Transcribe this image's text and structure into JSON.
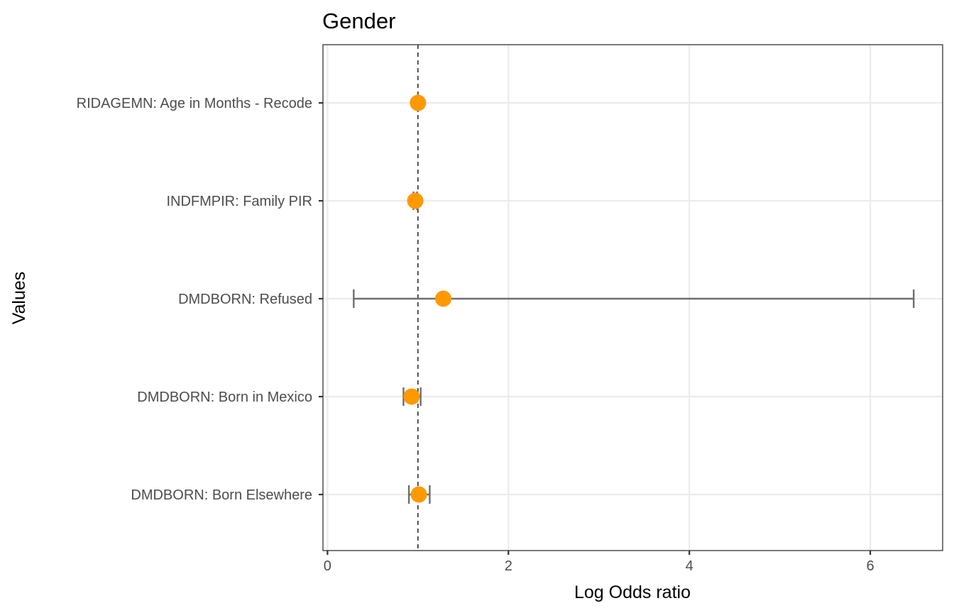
{
  "chart_data": {
    "type": "scatter",
    "title": "Gender",
    "xlabel": "Log Odds ratio",
    "ylabel": "Values",
    "xlim": [
      -0.05,
      6.8
    ],
    "xticks": [
      0,
      2,
      4,
      6
    ],
    "reference_line_x": 1,
    "grid": true,
    "point_color": "#FF9900",
    "errorbar_color": "#6E6E6E",
    "categories": [
      "DMDBORN: Born Elsewhere",
      "DMDBORN: Born in Mexico",
      "DMDBORN: Refused",
      "INDFMPIR: Family PIR",
      "RIDAGEMN: Age in Months - Recode"
    ],
    "points": [
      {
        "label": "DMDBORN: Born Elsewhere",
        "estimate": 1.01,
        "lower": 0.9,
        "upper": 1.13
      },
      {
        "label": "DMDBORN: Born in Mexico",
        "estimate": 0.93,
        "lower": 0.84,
        "upper": 1.03
      },
      {
        "label": "DMDBORN: Refused",
        "estimate": 1.28,
        "lower": 0.29,
        "upper": 6.48
      },
      {
        "label": "INDFMPIR: Family PIR",
        "estimate": 0.97,
        "lower": 0.95,
        "upper": 0.99
      },
      {
        "label": "RIDAGEMN: Age in Months - Recode",
        "estimate": 1.0,
        "lower": 1.0,
        "upper": 1.0
      }
    ]
  }
}
